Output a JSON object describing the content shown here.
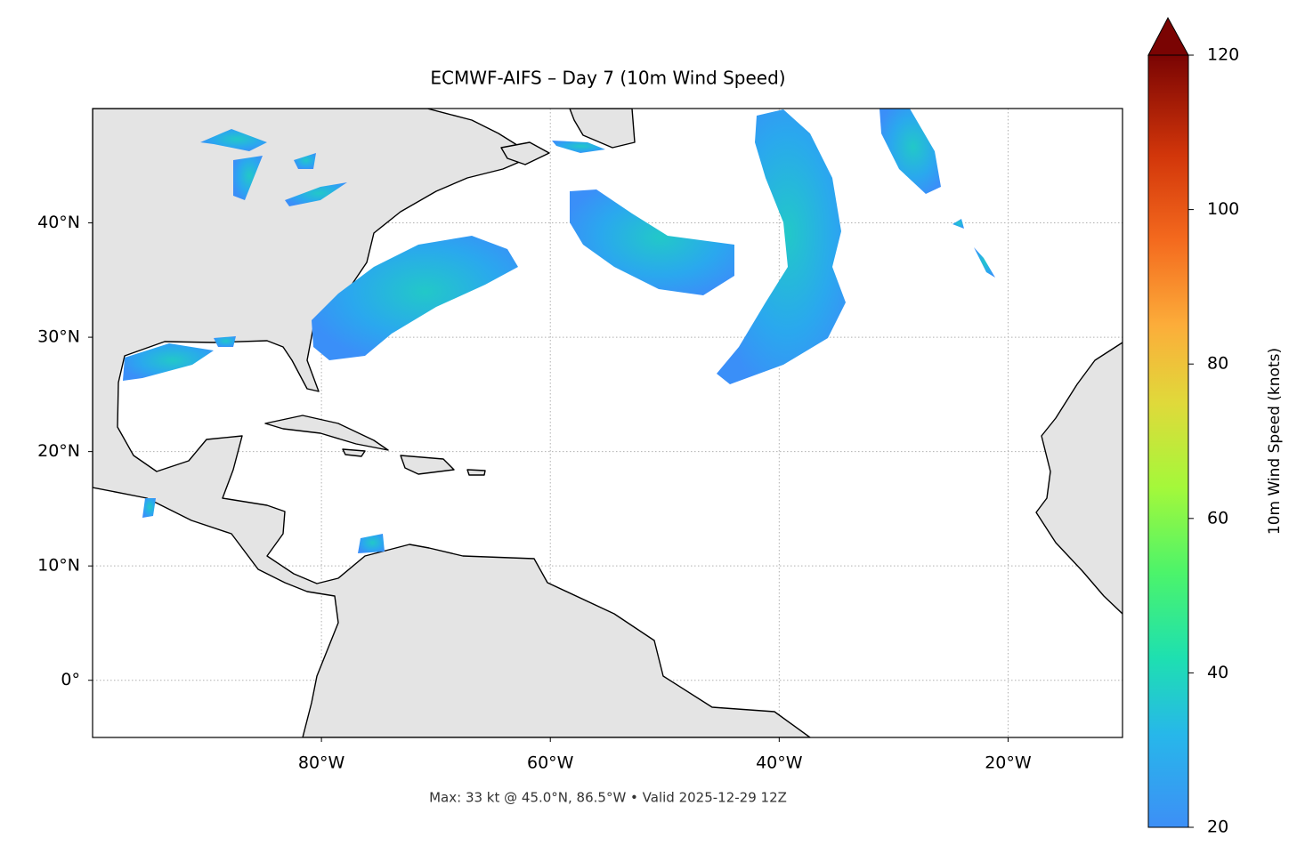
{
  "chart_data": {
    "type": "map",
    "title": "ECMWF-AIFS – Day 7 (10m Wind Speed)",
    "xlim": [
      -100,
      -10
    ],
    "ylim": [
      -5,
      50
    ],
    "xticks": [
      {
        "value": -80,
        "label": "80°W"
      },
      {
        "value": -60,
        "label": "60°W"
      },
      {
        "value": -40,
        "label": "40°W"
      },
      {
        "value": -20,
        "label": "20°W"
      }
    ],
    "yticks": [
      {
        "value": 0,
        "label": "0°"
      },
      {
        "value": 10,
        "label": "10°N"
      },
      {
        "value": 20,
        "label": "20°N"
      },
      {
        "value": 30,
        "label": "30°N"
      },
      {
        "value": 40,
        "label": "40°N"
      }
    ],
    "grid": true,
    "colorbar": {
      "label": "10m Wind Speed (knots)",
      "lim": [
        20,
        120
      ],
      "ticks": [
        20,
        40,
        60,
        80,
        100,
        120
      ]
    },
    "footer": "Max: 33 kt @ 45.0°N, 86.5°W • Valid 2025-12-29 12Z"
  }
}
